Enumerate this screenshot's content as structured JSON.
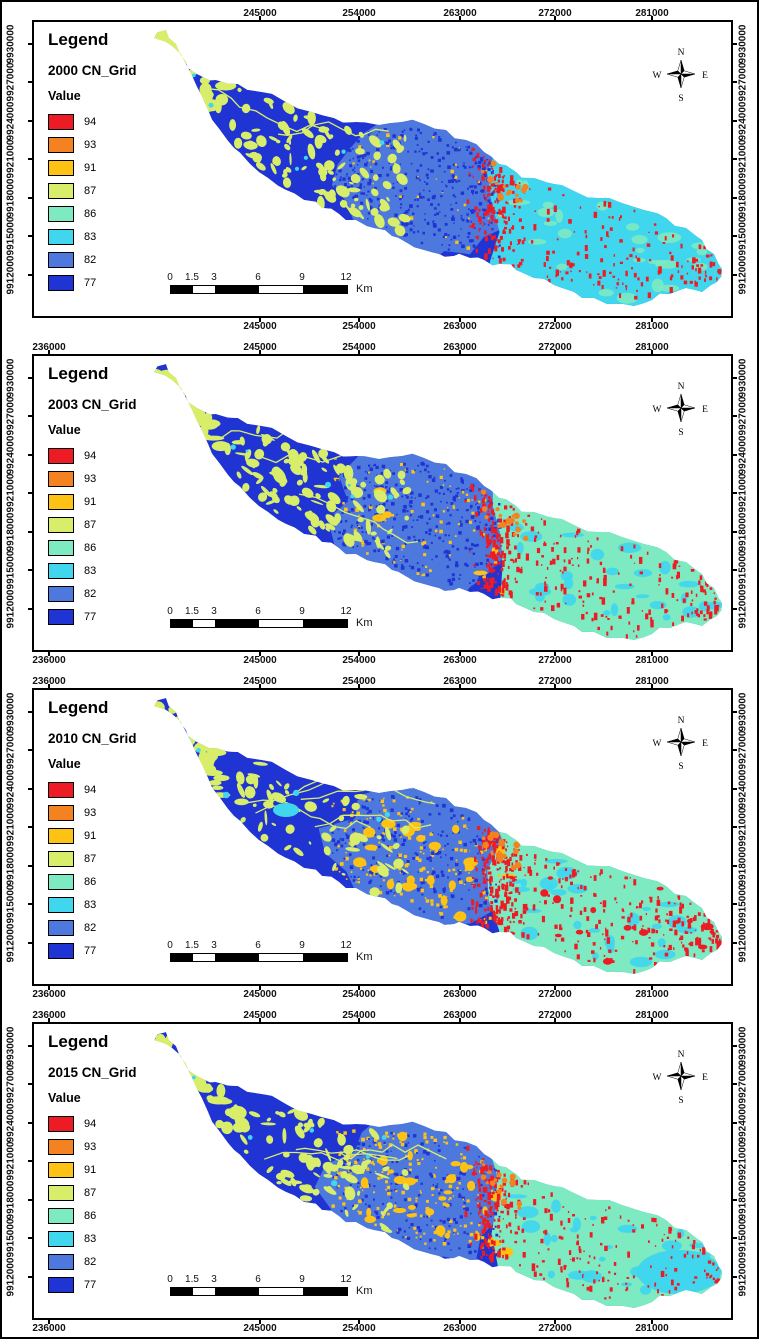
{
  "figure": {
    "name": "CN Grid watershed maps"
  },
  "legend": {
    "title": "Legend",
    "value_label": "Value",
    "entries": [
      {
        "value": "94",
        "color": "#ed1c24"
      },
      {
        "value": "93",
        "color": "#f58220"
      },
      {
        "value": "91",
        "color": "#fdc214"
      },
      {
        "value": "87",
        "color": "#d8ee6b"
      },
      {
        "value": "86",
        "color": "#7deac1"
      },
      {
        "value": "83",
        "color": "#3fd6ee"
      },
      {
        "value": "82",
        "color": "#4d79de"
      },
      {
        "value": "77",
        "color": "#2034d4"
      }
    ]
  },
  "compass": {
    "north": "N",
    "east": "E",
    "south": "S",
    "west": "W"
  },
  "scalebar": {
    "labels": [
      "0",
      "1.5",
      "3",
      "6",
      "9",
      "12"
    ],
    "unit": "Km"
  },
  "panels": [
    {
      "title": "2000 CN_Grid",
      "x_labels_top": [
        "245000",
        "254000",
        "263000",
        "272000",
        "281000"
      ],
      "x_labels_bottom": [
        "245000",
        "254000",
        "263000",
        "272000",
        "281000"
      ],
      "y_labels_left": [
        "9930000",
        "9927000",
        "9924000",
        "9921000",
        "9918000",
        "9915000",
        "9912000"
      ],
      "y_labels_right": [
        "9930000",
        "9927000",
        "9924000",
        "9921000",
        "9918000",
        "9915000",
        "9912000"
      ]
    },
    {
      "title": "2003 CN_Grid",
      "x_labels_top": [
        "236000",
        "245000",
        "254000",
        "263000",
        "272000",
        "281000"
      ],
      "x_labels_bottom": [
        "236000",
        "245000",
        "254000",
        "263000",
        "272000",
        "281000"
      ],
      "y_labels_left": [
        "9930000",
        "9927000",
        "9924000",
        "9921000",
        "9918000",
        "9915000",
        "9912000"
      ],
      "y_labels_right": [
        "9930000",
        "9927000",
        "9924000",
        "9921000",
        "9918000",
        "9915000",
        "9912000"
      ]
    },
    {
      "title": "2010 CN_Grid",
      "x_labels_top": [
        "236000",
        "245000",
        "254000",
        "263000",
        "272000",
        "281000"
      ],
      "x_labels_bottom": [
        "236000",
        "245000",
        "254000",
        "263000",
        "272000",
        "281000"
      ],
      "y_labels_left": [
        "9930000",
        "9927000",
        "9924000",
        "9921000",
        "9918000",
        "9915000",
        "9912000"
      ],
      "y_labels_right": [
        "9930000",
        "9927000",
        "9924000",
        "9921000",
        "9918000",
        "9915000",
        "9912000"
      ]
    },
    {
      "title": "2015 CN_Grid",
      "x_labels_top": [
        "236000",
        "245000",
        "254000",
        "263000",
        "272000",
        "281000"
      ],
      "x_labels_bottom": [
        "236000",
        "245000",
        "254000",
        "263000",
        "272000",
        "281000"
      ],
      "y_labels_left": [
        "9930000",
        "9927000",
        "9924000",
        "9921000",
        "9918000",
        "9915000",
        "9912000"
      ],
      "y_labels_right": [
        "9930000",
        "9927000",
        "9924000",
        "9921000",
        "9918000",
        "9915000",
        "9912000"
      ]
    }
  ]
}
